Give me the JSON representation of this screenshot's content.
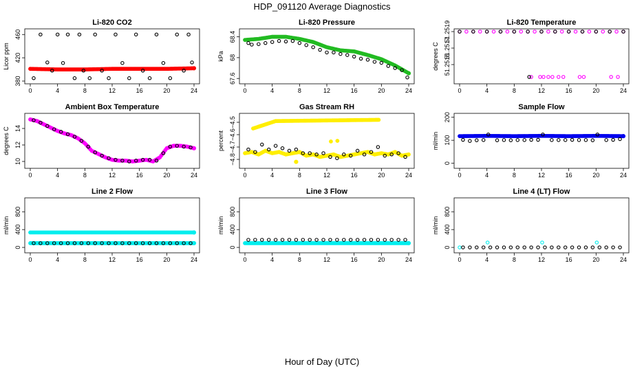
{
  "figure": {
    "title": "HDP_091120  Average Diagnostics",
    "xlabel": "Hour of Day (UTC)"
  },
  "chart_data": [
    {
      "type": "scatter",
      "title": "Li-820 CO2",
      "ylabel": "Licor ppm",
      "xlim": [
        0,
        24
      ],
      "ylim": [
        380,
        465
      ],
      "xticks": [
        0,
        4,
        8,
        12,
        16,
        20,
        24
      ],
      "yticks": [
        380,
        420,
        460
      ],
      "series": [
        {
          "name": "detail",
          "color": "#ff0000",
          "style": "dense",
          "x": [
            0,
            4,
            8,
            12,
            16,
            20,
            24
          ],
          "y": [
            401,
            400,
            400,
            401,
            401,
            401,
            402
          ]
        },
        {
          "name": "average",
          "color": "#000000",
          "style": "open",
          "x": [
            0.5,
            1.5,
            2.5,
            3.2,
            4,
            4.8,
            5.5,
            6.5,
            7.2,
            7.8,
            8.7,
            9.5,
            10.5,
            11.5,
            12.5,
            13.5,
            14.5,
            15.5,
            16.5,
            17.5,
            18.5,
            19.5,
            20.5,
            21.5,
            22.5,
            23.2,
            23.7
          ],
          "y": [
            385,
            460,
            412,
            398,
            460,
            411,
            460,
            385,
            460,
            398,
            385,
            460,
            398,
            385,
            460,
            411,
            385,
            460,
            398,
            385,
            460,
            411,
            385,
            460,
            398,
            460,
            412
          ]
        }
      ]
    },
    {
      "type": "scatter",
      "title": "Li-820 Pressure",
      "ylabel": "kPa",
      "xlim": [
        0,
        24
      ],
      "ylim": [
        67.55,
        68.5
      ],
      "xticks": [
        0,
        4,
        8,
        12,
        16,
        20,
        24
      ],
      "yticks": [
        67.6,
        68.0,
        68.4
      ],
      "series": [
        {
          "name": "detail",
          "color": "#22bb22",
          "style": "dense",
          "x": [
            0,
            2,
            4,
            6,
            8,
            10,
            12,
            14,
            16,
            18,
            20,
            22,
            24
          ],
          "y": [
            68.34,
            68.36,
            68.4,
            68.4,
            68.36,
            68.3,
            68.2,
            68.14,
            68.12,
            68.05,
            67.97,
            67.85,
            67.7
          ]
        },
        {
          "name": "average",
          "color": "#000000",
          "style": "open",
          "x": [
            0.5,
            1,
            2,
            3,
            4,
            5,
            6,
            7,
            8,
            9,
            10,
            11,
            12,
            13,
            14,
            15,
            16,
            17,
            18,
            19,
            20,
            21,
            22,
            23,
            23.8
          ],
          "y": [
            68.28,
            68.25,
            68.26,
            68.28,
            68.3,
            68.32,
            68.31,
            68.32,
            68.28,
            68.24,
            68.2,
            68.15,
            68.1,
            68.1,
            68.07,
            68.05,
            68.02,
            67.98,
            67.96,
            67.92,
            67.9,
            67.84,
            67.8,
            67.76,
            67.62
          ]
        }
      ]
    },
    {
      "type": "scatter",
      "title": "Li-820 Temperature",
      "ylabel": "degrees C",
      "xlim": [
        0,
        24
      ],
      "ylim": [
        51.2513,
        51.2519
      ],
      "xticks": [
        0,
        4,
        8,
        12,
        16,
        20,
        24
      ],
      "yticks": [
        51.2515,
        51.2517,
        51.2519
      ],
      "series": [
        {
          "name": "detail",
          "color": "#ff00ff",
          "style": "open",
          "x": [
            0,
            1,
            2,
            3,
            4,
            5,
            6,
            7,
            8,
            9,
            10,
            11,
            12,
            13,
            14,
            15,
            16,
            17,
            18,
            19,
            20,
            21,
            22,
            23,
            24,
            10.5,
            11.8,
            12.3,
            13,
            13.6,
            14.5,
            15.2,
            17.6,
            18.2,
            22.2,
            23.2
          ],
          "y": [
            51.2519,
            51.2519,
            51.2519,
            51.2519,
            51.2519,
            51.2519,
            51.2519,
            51.2519,
            51.2519,
            51.2519,
            51.2519,
            51.2519,
            51.2519,
            51.2519,
            51.2519,
            51.2519,
            51.2519,
            51.2519,
            51.2519,
            51.2519,
            51.2519,
            51.2519,
            51.2519,
            51.2519,
            51.2519,
            51.25135,
            51.25135,
            51.25135,
            51.25135,
            51.25135,
            51.25135,
            51.25135,
            51.25135,
            51.25135,
            51.25135,
            51.25135
          ]
        },
        {
          "name": "average",
          "color": "#000000",
          "style": "open",
          "x": [
            0,
            2,
            4,
            6,
            8,
            10,
            10.2,
            12,
            14,
            16,
            18,
            20,
            22,
            24
          ],
          "y": [
            51.2519,
            51.2519,
            51.2519,
            51.2519,
            51.2519,
            51.2519,
            51.25135,
            51.2519,
            51.2519,
            51.2519,
            51.2519,
            51.2519,
            51.2519,
            51.2519
          ]
        }
      ]
    },
    {
      "type": "scatter",
      "title": "Ambient Box Temperature",
      "ylabel": "degrees C",
      "xlim": [
        0,
        24
      ],
      "ylim": [
        9.5,
        15.5
      ],
      "xticks": [
        0,
        4,
        8,
        12,
        16,
        20,
        24
      ],
      "yticks": [
        10,
        12,
        14
      ],
      "series": [
        {
          "name": "detail",
          "color": "#ff00ff",
          "style": "dense",
          "x": [
            0,
            1,
            2,
            3,
            4,
            5,
            6,
            7,
            8,
            9,
            10,
            11,
            12,
            13,
            14,
            15,
            16,
            17,
            18,
            19,
            20,
            21,
            22,
            23,
            24
          ],
          "y": [
            15.1,
            14.9,
            14.5,
            14.1,
            13.7,
            13.4,
            13.2,
            12.8,
            12.2,
            11.3,
            10.9,
            10.5,
            10.2,
            10.1,
            10.1,
            10.0,
            10.1,
            10.2,
            10.0,
            10.5,
            11.6,
            11.9,
            11.9,
            11.8,
            11.6
          ]
        },
        {
          "name": "average",
          "color": "#000000",
          "style": "open",
          "x": [
            0.5,
            1.5,
            2.5,
            3.5,
            4.5,
            5.5,
            6.5,
            7.5,
            8.5,
            9.5,
            10.5,
            11.5,
            12.5,
            13.5,
            14.5,
            15.5,
            16.5,
            17.5,
            18.5,
            19.5,
            20.5,
            21.5,
            22.5,
            23.5
          ],
          "y": [
            15.0,
            14.7,
            14.3,
            13.9,
            13.6,
            13.3,
            13.0,
            12.5,
            11.8,
            11.1,
            10.7,
            10.4,
            10.2,
            10.1,
            10.0,
            10.1,
            10.2,
            10.2,
            10.1,
            11.0,
            11.8,
            11.9,
            11.8,
            11.7
          ]
        }
      ]
    },
    {
      "type": "scatter",
      "title": "Gas Stream RH",
      "ylabel": "percent",
      "xlim": [
        0,
        24
      ],
      "ylim": [
        -4.85,
        -4.45
      ],
      "xticks": [
        0,
        4,
        8,
        12,
        16,
        20,
        24
      ],
      "yticks": [
        -4.8,
        -4.7,
        -4.6,
        -4.5
      ],
      "series": [
        {
          "name": "detail",
          "color": "#ffee00",
          "style": "dense",
          "x": [
            0,
            1,
            2,
            3,
            4,
            5,
            6,
            7,
            8,
            9,
            10,
            11,
            12,
            13,
            14,
            15,
            16,
            17,
            18,
            19,
            20,
            21,
            22,
            23,
            24,
            1.2,
            4.5,
            19.6,
            7.5
          ],
          "y": [
            -4.75,
            -4.74,
            -4.76,
            -4.73,
            -4.75,
            -4.74,
            -4.76,
            -4.75,
            -4.74,
            -4.77,
            -4.76,
            -4.78,
            -4.77,
            -4.76,
            -4.78,
            -4.77,
            -4.76,
            -4.75,
            -4.74,
            -4.76,
            -4.75,
            -4.76,
            -4.74,
            -4.77,
            -4.76,
            -4.55,
            -4.49,
            -4.48,
            -4.82
          ]
        },
        {
          "name": "average",
          "color": "#000000",
          "style": "open",
          "x": [
            0.5,
            1.5,
            2.5,
            3.5,
            4.5,
            5.5,
            6.5,
            7.5,
            8.5,
            9.5,
            10.5,
            11.5,
            12.5,
            13.5,
            14.5,
            15.5,
            16.5,
            17.5,
            18.5,
            19.5,
            20.5,
            21.5,
            22.5,
            23.5
          ],
          "y": [
            -4.72,
            -4.74,
            -4.68,
            -4.72,
            -4.69,
            -4.71,
            -4.73,
            -4.72,
            -4.75,
            -4.75,
            -4.76,
            -4.75,
            -4.78,
            -4.79,
            -4.76,
            -4.77,
            -4.73,
            -4.76,
            -4.74,
            -4.7,
            -4.77,
            -4.76,
            -4.75,
            -4.78
          ]
        }
      ]
    },
    {
      "type": "scatter",
      "title": "Sample Flow",
      "ylabel": "ml/min",
      "xlim": [
        0,
        24
      ],
      "ylim": [
        -10,
        205
      ],
      "xticks": [
        0,
        4,
        8,
        12,
        16,
        20,
        24
      ],
      "yticks": [
        0,
        100,
        200
      ],
      "series": [
        {
          "name": "detail",
          "color": "#0000ee",
          "style": "dense",
          "x": [
            0,
            4,
            8,
            12,
            16,
            20,
            24
          ],
          "y": [
            118,
            119,
            118,
            119,
            118,
            119,
            118
          ]
        },
        {
          "name": "average",
          "color": "#000000",
          "style": "open",
          "x": [
            0.5,
            1.5,
            2.5,
            3.5,
            4.2,
            5.5,
            6.5,
            7.5,
            8.5,
            9.5,
            10.5,
            11.5,
            12.2,
            13.5,
            14.5,
            15.5,
            16.5,
            17.5,
            18.5,
            19.5,
            20.2,
            21.5,
            22.5,
            23.5
          ],
          "y": [
            102,
            97,
            100,
            101,
            125,
            100,
            101,
            100,
            101,
            101,
            102,
            102,
            125,
            101,
            101,
            101,
            102,
            101,
            101,
            100,
            125,
            101,
            102,
            105
          ]
        }
      ]
    },
    {
      "type": "scatter",
      "title": "Line 2 Flow",
      "ylabel": "ml/min",
      "xlim": [
        0,
        24
      ],
      "ylim": [
        -60,
        1050
      ],
      "xticks": [
        0,
        4,
        8,
        12,
        16,
        20,
        24
      ],
      "yticks": [
        0,
        400,
        800
      ],
      "series": [
        {
          "name": "detail-upper",
          "color": "#00eeee",
          "style": "dense",
          "x": [
            0,
            4,
            8,
            12,
            16,
            20,
            24
          ],
          "y": [
            335,
            335,
            335,
            335,
            335,
            335,
            335
          ]
        },
        {
          "name": "detail-lower",
          "color": "#00eeee",
          "style": "dense",
          "x": [
            0,
            4,
            8,
            12,
            16,
            20,
            24
          ],
          "y": [
            95,
            95,
            95,
            95,
            95,
            95,
            95
          ]
        },
        {
          "name": "average",
          "color": "#000000",
          "style": "open",
          "x": [
            0.5,
            1.5,
            2.5,
            3.5,
            4.5,
            5.5,
            6.5,
            7.5,
            8.5,
            9.5,
            10.5,
            11.5,
            12.5,
            13.5,
            14.5,
            15.5,
            16.5,
            17.5,
            18.5,
            19.5,
            20.5,
            21.5,
            22.5,
            23.5
          ],
          "y": [
            95,
            95,
            95,
            95,
            95,
            95,
            95,
            95,
            95,
            95,
            95,
            95,
            95,
            95,
            95,
            95,
            95,
            95,
            95,
            95,
            95,
            95,
            95,
            95
          ]
        }
      ]
    },
    {
      "type": "scatter",
      "title": "Line 3 Flow",
      "ylabel": "ml/min",
      "xlim": [
        0,
        24
      ],
      "ylim": [
        -60,
        1050
      ],
      "xticks": [
        0,
        4,
        8,
        12,
        16,
        20,
        24
      ],
      "yticks": [
        0,
        400,
        800
      ],
      "series": [
        {
          "name": "detail",
          "color": "#00eeee",
          "style": "dense",
          "x": [
            0,
            4,
            8,
            12,
            16,
            20,
            24
          ],
          "y": [
            95,
            95,
            95,
            95,
            95,
            95,
            95
          ]
        },
        {
          "name": "average",
          "color": "#000000",
          "style": "open",
          "x": [
            0.5,
            1.5,
            2.5,
            3.5,
            4.5,
            5.5,
            6.5,
            7.5,
            8.5,
            9.5,
            10.5,
            11.5,
            12.5,
            13.5,
            14.5,
            15.5,
            16.5,
            17.5,
            18.5,
            19.5,
            20.5,
            21.5,
            22.5,
            23.5
          ],
          "y": [
            170,
            170,
            170,
            170,
            170,
            170,
            170,
            170,
            170,
            170,
            170,
            170,
            170,
            170,
            170,
            170,
            170,
            170,
            170,
            170,
            170,
            170,
            170,
            170
          ]
        }
      ]
    },
    {
      "type": "scatter",
      "title": "Line 4 (LT) Flow",
      "ylabel": "ml/min",
      "xlim": [
        0,
        24
      ],
      "ylim": [
        -60,
        1050
      ],
      "xticks": [
        0,
        4,
        8,
        12,
        16,
        20,
        24
      ],
      "yticks": [
        0,
        400,
        800
      ],
      "series": [
        {
          "name": "detail",
          "color": "#00eeee",
          "style": "open",
          "x": [
            0,
            4.1,
            12.1,
            20.1
          ],
          "y": [
            0,
            110,
            110,
            110
          ]
        },
        {
          "name": "average",
          "color": "#000000",
          "style": "open",
          "x": [
            0.5,
            1.5,
            2.5,
            3.5,
            4.5,
            5.5,
            6.5,
            7.5,
            8.5,
            9.5,
            10.5,
            11.5,
            12.5,
            13.5,
            14.5,
            15.5,
            16.5,
            17.5,
            18.5,
            19.5,
            20.5,
            21.5,
            22.5,
            23.5
          ],
          "y": [
            0,
            0,
            0,
            0,
            0,
            0,
            0,
            0,
            0,
            0,
            0,
            0,
            0,
            0,
            0,
            0,
            0,
            0,
            0,
            0,
            0,
            0,
            0,
            0
          ]
        }
      ]
    }
  ]
}
